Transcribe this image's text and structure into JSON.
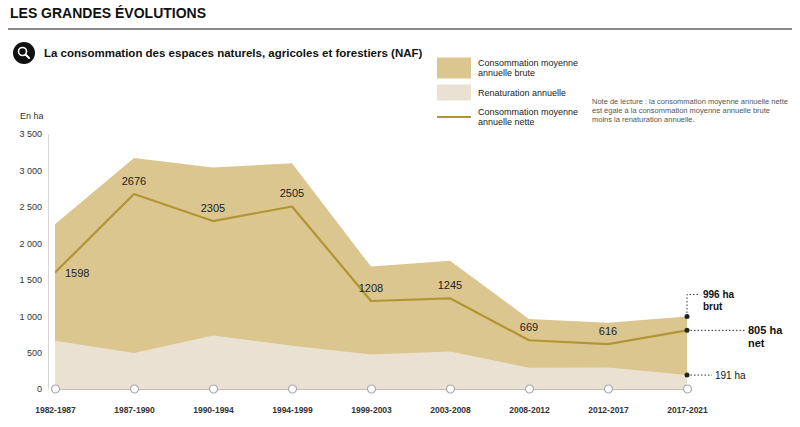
{
  "header": "LES GRANDES ÉVOLUTIONS",
  "chart_data": {
    "type": "area",
    "title": "La consommation des espaces naturels, agricoles et forestiers (NAF)",
    "note": "Note de lecture : la consommation moyenne annuelle nette est égale à la consommation moyenne annuelle brute moins la renaturation annuelle.",
    "y_label": "En ha",
    "categories": [
      "1982-1987",
      "1987-1990",
      "1990-1994",
      "1994-1999",
      "1999-2003",
      "2003-2008",
      "2008-2012",
      "2012-2017",
      "2017-2021"
    ],
    "series": [
      {
        "name": "Consommation moyenne annuelle brute",
        "type": "area",
        "color": "#dbc690",
        "values": [
          2260,
          3170,
          3040,
          3100,
          1680,
          1760,
          960,
          910,
          996
        ]
      },
      {
        "name": "Renaturation annuelle",
        "type": "area",
        "color": "#ebe1d2",
        "values": [
          662,
          494,
          735,
          595,
          472,
          515,
          291,
          294,
          191
        ]
      },
      {
        "name": "Consommation moyenne annuelle nette",
        "type": "line",
        "color": "#b09632",
        "values": [
          1598,
          2676,
          2305,
          2505,
          1208,
          1245,
          669,
          616,
          805
        ],
        "data_labels": true,
        "value_labels": [
          "1598",
          "2676",
          "2305",
          "2505",
          "1208",
          "1245",
          "669",
          "616",
          null
        ]
      }
    ],
    "annotations": [
      {
        "text": "996 ha",
        "subtext": "brut",
        "value": 996
      },
      {
        "text": "805 ha",
        "subtext": "net",
        "value": 805
      },
      {
        "text": "191 ha",
        "value": 191
      }
    ],
    "ylim": [
      0,
      3500
    ],
    "yticks": [
      0,
      500,
      {
        "value": 1000,
        "label": "1 000"
      },
      {
        "value": 1500,
        "label": "1 500"
      },
      {
        "value": 2000,
        "label": "2 000"
      },
      {
        "value": 2500,
        "label": "2 500"
      },
      {
        "value": 3000,
        "label": "3 000"
      },
      {
        "value": 3500,
        "label": "3 500"
      }
    ],
    "grid": false,
    "legend": "top-right"
  }
}
